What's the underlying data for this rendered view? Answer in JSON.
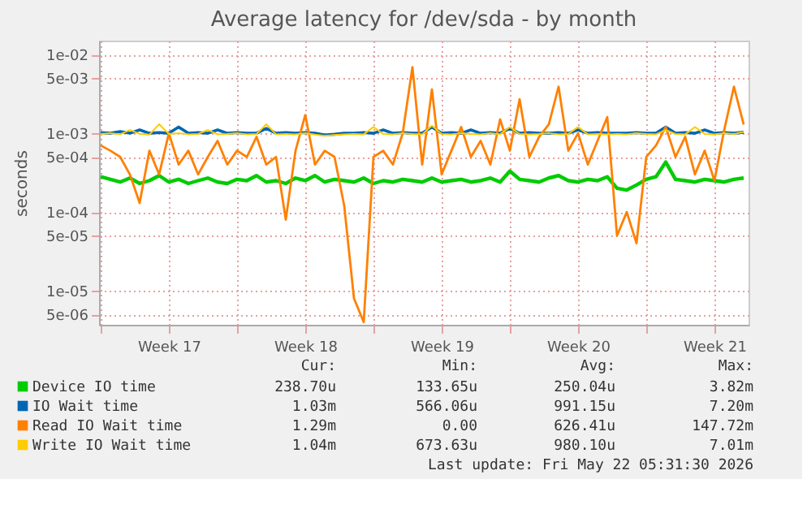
{
  "chart_data": {
    "type": "line",
    "title": "Average latency for /dev/sda - by month",
    "ylabel": "seconds",
    "log": "y",
    "grid": true,
    "legend": "bottom",
    "line_style": "solid",
    "marker": "none",
    "x": [
      "2026-04-20T00:00",
      "2026-04-20T12:00",
      "2026-04-21T00:00",
      "2026-04-21T12:00",
      "2026-04-22T00:00",
      "2026-04-22T12:00",
      "2026-04-23T00:00",
      "2026-04-23T12:00",
      "2026-04-24T00:00",
      "2026-04-24T12:00",
      "2026-04-25T00:00",
      "2026-04-25T12:00",
      "2026-04-26T00:00",
      "2026-04-26T12:00",
      "2026-04-27T00:00",
      "2026-04-27T12:00",
      "2026-04-28T00:00",
      "2026-04-28T12:00",
      "2026-04-29T00:00",
      "2026-04-29T12:00",
      "2026-04-30T00:00",
      "2026-04-30T12:00",
      "2026-05-01T00:00",
      "2026-05-01T12:00",
      "2026-05-02T00:00",
      "2026-05-02T12:00",
      "2026-05-03T00:00",
      "2026-05-03T12:00",
      "2026-05-04T00:00",
      "2026-05-04T12:00",
      "2026-05-05T00:00",
      "2026-05-05T12:00",
      "2026-05-06T00:00",
      "2026-05-06T12:00",
      "2026-05-07T00:00",
      "2026-05-07T12:00",
      "2026-05-08T00:00",
      "2026-05-08T12:00",
      "2026-05-09T00:00",
      "2026-05-09T12:00",
      "2026-05-10T00:00",
      "2026-05-10T12:00",
      "2026-05-11T00:00",
      "2026-05-11T12:00",
      "2026-05-12T00:00",
      "2026-05-12T12:00",
      "2026-05-13T00:00",
      "2026-05-13T12:00",
      "2026-05-14T00:00",
      "2026-05-14T12:00",
      "2026-05-15T00:00",
      "2026-05-15T12:00",
      "2026-05-16T00:00",
      "2026-05-16T12:00",
      "2026-05-17T00:00",
      "2026-05-17T12:00",
      "2026-05-18T00:00",
      "2026-05-18T12:00",
      "2026-05-19T00:00",
      "2026-05-19T12:00",
      "2026-05-20T00:00",
      "2026-05-20T12:00",
      "2026-05-21T00:00",
      "2026-05-21T12:00",
      "2026-05-22T00:00",
      "2026-05-22T12:00",
      "2026-05-23T00:00"
    ],
    "xlim": [
      "2026-04-19T22:00",
      "2026-05-23T06:00"
    ],
    "xticks": [
      {
        "value": "2026-04-20T00:00",
        "label": null
      },
      {
        "value": "2026-04-23T12:00",
        "label": "Week 17"
      },
      {
        "value": "2026-04-27T00:00",
        "label": null
      },
      {
        "value": "2026-04-30T12:00",
        "label": "Week 18"
      },
      {
        "value": "2026-05-04T00:00",
        "label": null
      },
      {
        "value": "2026-05-07T12:00",
        "label": "Week 19"
      },
      {
        "value": "2026-05-11T00:00",
        "label": null
      },
      {
        "value": "2026-05-14T12:00",
        "label": "Week 20"
      },
      {
        "value": "2026-05-18T00:00",
        "label": null
      },
      {
        "value": "2026-05-21T12:00",
        "label": "Week 21"
      }
    ],
    "ylim": [
      3.7e-06,
      0.015
    ],
    "yticks": [
      {
        "value": 0.01,
        "label": "1e-02"
      },
      {
        "value": 0.005,
        "label": "5e-03"
      },
      {
        "value": 0.001,
        "label": "1e-03"
      },
      {
        "value": 0.0005,
        "label": "5e-04"
      },
      {
        "value": 0.0001,
        "label": "1e-04"
      },
      {
        "value": 5e-05,
        "label": "5e-05"
      },
      {
        "value": 1e-05,
        "label": "1e-05"
      },
      {
        "value": 5e-06,
        "label": "5e-06"
      }
    ],
    "series": [
      {
        "name": "Device IO time",
        "color": "#00cc00",
        "values": [
          0.00028,
          0.00026,
          0.00024,
          0.00027,
          0.00023,
          0.00025,
          0.00029,
          0.00024,
          0.00026,
          0.00023,
          0.00025,
          0.00027,
          0.00024,
          0.00023,
          0.00026,
          0.00025,
          0.00029,
          0.00024,
          0.00025,
          0.00023,
          0.00027,
          0.00025,
          0.00029,
          0.00024,
          0.00026,
          0.00025,
          0.00024,
          0.00027,
          0.00023,
          0.00025,
          0.00024,
          0.00026,
          0.00025,
          0.00024,
          0.00027,
          0.00024,
          0.00025,
          0.00026,
          0.00024,
          0.00025,
          0.00027,
          0.00024,
          0.00033,
          0.00026,
          0.00025,
          0.00024,
          0.00027,
          0.00029,
          0.00025,
          0.00024,
          0.00026,
          0.00025,
          0.00028,
          0.0002,
          0.00019,
          0.00022,
          0.00026,
          0.00028,
          0.00043,
          0.00026,
          0.00025,
          0.00024,
          0.00026,
          0.00025,
          0.00024,
          0.00026,
          0.00027
        ]
      },
      {
        "name": "IO Wait time",
        "color": "#0066b3",
        "values": [
          0.00102,
          0.001,
          0.00105,
          0.001,
          0.0011,
          0.001,
          0.00102,
          0.001,
          0.0012,
          0.001,
          0.00102,
          0.001,
          0.0011,
          0.001,
          0.00102,
          0.001,
          0.001,
          0.00115,
          0.001,
          0.00102,
          0.001,
          0.00102,
          0.001,
          0.00095,
          0.00097,
          0.001,
          0.001,
          0.00102,
          0.001,
          0.0011,
          0.001,
          0.00102,
          0.001,
          0.001,
          0.0012,
          0.001,
          0.00102,
          0.001,
          0.0011,
          0.001,
          0.00102,
          0.001,
          0.00115,
          0.001,
          0.00102,
          0.001,
          0.001,
          0.00102,
          0.001,
          0.0011,
          0.001,
          0.00102,
          0.001,
          0.001,
          0.001,
          0.00102,
          0.001,
          0.001,
          0.0012,
          0.001,
          0.00102,
          0.001,
          0.0011,
          0.001,
          0.00102,
          0.001,
          0.00103
        ]
      },
      {
        "name": "Read IO Wait time",
        "color": "#ff8000",
        "values": [
          0.0007,
          0.0006,
          0.0005,
          0.0003,
          0.00013,
          0.0006,
          0.0003,
          0.001,
          0.0004,
          0.0006,
          0.0003,
          0.0005,
          0.0008,
          0.0004,
          0.0006,
          0.0005,
          0.0009,
          0.0004,
          0.0005,
          8e-05,
          0.0006,
          0.0017,
          0.0004,
          0.0006,
          0.0005,
          0.00012,
          8e-06,
          4e-06,
          0.0005,
          0.0006,
          0.0004,
          0.001,
          0.0069,
          0.0004,
          0.0036,
          0.0003,
          0.0006,
          0.0012,
          0.0005,
          0.0008,
          0.0004,
          0.0015,
          0.0006,
          0.0027,
          0.0005,
          0.0009,
          0.0013,
          0.0039,
          0.0006,
          0.001,
          0.0004,
          0.0008,
          0.0016,
          5e-05,
          0.0001,
          4e-05,
          0.0005,
          0.0007,
          0.0012,
          0.0005,
          0.0009,
          0.0003,
          0.0006,
          0.00025,
          0.0011,
          0.0039,
          0.00129
        ]
      },
      {
        "name": "Write IO Wait time",
        "color": "#ffcc00",
        "values": [
          0.00098,
          0.001,
          0.00097,
          0.0011,
          0.00098,
          0.00096,
          0.0013,
          0.00098,
          0.001,
          0.00097,
          0.00098,
          0.0011,
          0.00097,
          0.00098,
          0.001,
          0.00097,
          0.00098,
          0.0013,
          0.00097,
          0.00098,
          0.00097,
          0.001,
          0.00096,
          0.00093,
          0.00095,
          0.00097,
          0.00098,
          0.00097,
          0.0012,
          0.00098,
          0.00097,
          0.001,
          0.00098,
          0.00097,
          0.00125,
          0.00098,
          0.00097,
          0.001,
          0.00098,
          0.00097,
          0.001,
          0.00097,
          0.0012,
          0.00098,
          0.00097,
          0.00098,
          0.001,
          0.00097,
          0.00098,
          0.0012,
          0.00097,
          0.00098,
          0.00097,
          0.00098,
          0.00097,
          0.001,
          0.00098,
          0.00097,
          0.0011,
          0.00098,
          0.00097,
          0.0012,
          0.00098,
          0.00097,
          0.001,
          0.00098,
          0.00104
        ]
      }
    ],
    "annotations": [
      "Cur:",
      "Min:",
      "Avg:",
      "Max:",
      "238.70u",
      "133.65u",
      "250.04u",
      "3.82m",
      "1.03m",
      "566.06u",
      "991.15u",
      "7.20m",
      "1.29m",
      "0.00",
      "626.41u",
      "147.72m",
      "1.04m",
      "673.63u",
      "980.10u",
      "7.01m",
      "Last update: Fri May 22 05:31:30 2026"
    ]
  }
}
